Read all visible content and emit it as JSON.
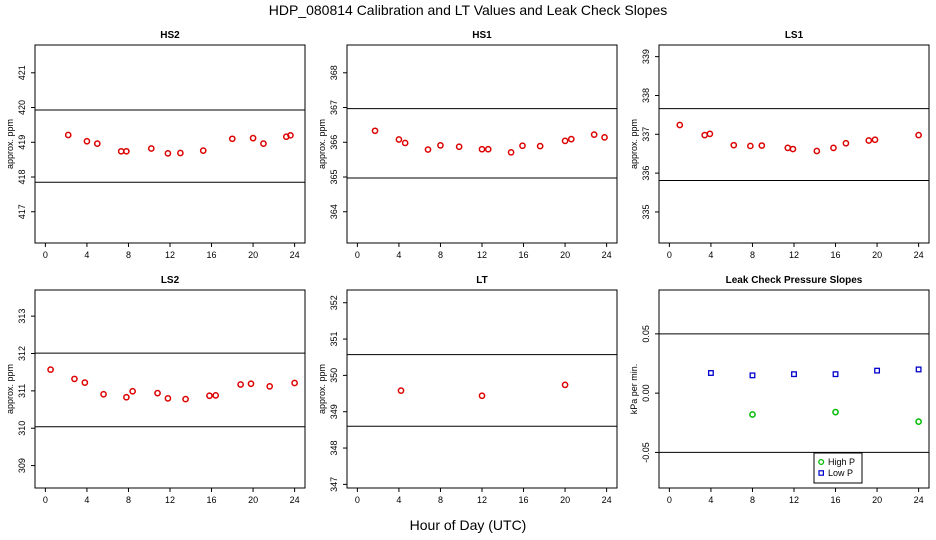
{
  "figure": {
    "title": "HDP_080814  Calibration and LT Values and Leak Check Slopes",
    "xlabel": "Hour of Day (UTC)"
  },
  "chart_data": [
    {
      "id": "hs2",
      "type": "scatter",
      "title": "HS2",
      "ylabel": "approx. ppm",
      "xlim": [
        -1,
        25
      ],
      "ylim": [
        416.1,
        421.8
      ],
      "xticks": [
        0,
        4,
        8,
        12,
        16,
        20,
        24
      ],
      "yticks": [
        417,
        418,
        419,
        420,
        421
      ],
      "hlines": [
        419.93,
        417.85
      ],
      "series": [
        {
          "name": "HS2",
          "color": "#dd0000",
          "x": [
            2.2,
            4.0,
            5.0,
            7.3,
            7.8,
            10.2,
            11.8,
            13.0,
            15.2,
            18.0,
            20.0,
            21.0,
            23.2,
            23.6
          ],
          "y": [
            419.21,
            419.03,
            418.96,
            418.74,
            418.74,
            418.82,
            418.68,
            418.69,
            418.76,
            419.1,
            419.12,
            418.96,
            419.16,
            419.2
          ]
        }
      ]
    },
    {
      "id": "hs1",
      "type": "scatter",
      "title": "HS1",
      "ylabel": "approx. ppm",
      "xlim": [
        -1,
        25
      ],
      "ylim": [
        363.1,
        368.8
      ],
      "xticks": [
        0,
        4,
        8,
        12,
        16,
        20,
        24
      ],
      "yticks": [
        364,
        365,
        366,
        367,
        368
      ],
      "hlines": [
        366.97,
        364.97
      ],
      "series": [
        {
          "name": "HS1",
          "color": "#dd0000",
          "x": [
            1.7,
            4.0,
            4.6,
            6.8,
            8.0,
            9.8,
            12.0,
            12.6,
            14.8,
            15.9,
            17.6,
            20.0,
            20.6,
            22.8,
            23.8
          ],
          "y": [
            366.33,
            366.08,
            365.98,
            365.79,
            365.91,
            365.87,
            365.8,
            365.8,
            365.71,
            365.9,
            365.89,
            366.04,
            366.09,
            366.22,
            366.14
          ]
        }
      ]
    },
    {
      "id": "ls1",
      "type": "scatter",
      "title": "LS1",
      "ylabel": "approx. ppm",
      "xlim": [
        -1,
        25
      ],
      "ylim": [
        334.2,
        339.3
      ],
      "xticks": [
        0,
        4,
        8,
        12,
        16,
        20,
        24
      ],
      "yticks": [
        335,
        336,
        337,
        338,
        339
      ],
      "hlines": [
        337.66,
        335.81
      ],
      "series": [
        {
          "name": "LS1",
          "color": "#dd0000",
          "x": [
            1.0,
            3.4,
            3.9,
            6.2,
            7.8,
            8.9,
            11.4,
            11.9,
            14.2,
            15.8,
            17.0,
            19.2,
            19.8,
            24.0
          ],
          "y": [
            337.24,
            336.98,
            337.01,
            336.72,
            336.7,
            336.71,
            336.65,
            336.62,
            336.57,
            336.65,
            336.77,
            336.84,
            336.86,
            336.98
          ]
        }
      ]
    },
    {
      "id": "ls2",
      "type": "scatter",
      "title": "LS2",
      "ylabel": "approx. ppm",
      "xlim": [
        -1,
        25
      ],
      "ylim": [
        308.4,
        313.7
      ],
      "xticks": [
        0,
        4,
        8,
        12,
        16,
        20,
        24
      ],
      "yticks": [
        309,
        310,
        311,
        312,
        313
      ],
      "hlines": [
        312.01,
        310.04
      ],
      "series": [
        {
          "name": "LS2",
          "color": "#dd0000",
          "x": [
            0.5,
            2.8,
            3.8,
            5.6,
            7.8,
            8.4,
            10.8,
            11.8,
            13.5,
            15.8,
            16.4,
            18.8,
            19.8,
            21.6,
            24.0
          ],
          "y": [
            311.57,
            311.32,
            311.22,
            310.91,
            310.83,
            310.99,
            310.94,
            310.8,
            310.78,
            310.87,
            310.88,
            311.17,
            311.19,
            311.12,
            311.21
          ]
        }
      ]
    },
    {
      "id": "lt",
      "type": "scatter",
      "title": "LT",
      "ylabel": "approx. ppm",
      "xlim": [
        -1,
        25
      ],
      "ylim": [
        346.9,
        352.35
      ],
      "xticks": [
        0,
        4,
        8,
        12,
        16,
        20,
        24
      ],
      "yticks": [
        347,
        348,
        349,
        350,
        351,
        352
      ],
      "hlines": [
        350.57,
        348.6
      ],
      "series": [
        {
          "name": "LT",
          "color": "#dd0000",
          "x": [
            4.2,
            12.0,
            20.0
          ],
          "y": [
            349.58,
            349.44,
            349.74
          ]
        }
      ]
    },
    {
      "id": "leak",
      "type": "scatter",
      "title": "Leak Check Pressure Slopes",
      "ylabel": "kPa per min.",
      "xlim": [
        -1,
        25
      ],
      "ylim": [
        -0.08,
        0.087
      ],
      "xticks": [
        0,
        4,
        8,
        12,
        16,
        20,
        24
      ],
      "yticks": [
        -0.05,
        0.0,
        0.05
      ],
      "ytick_labels": [
        "-0.05",
        "0.00",
        "0.05"
      ],
      "hlines": [
        0.05,
        -0.05
      ],
      "legend": {
        "position": "bottom-right",
        "entries": [
          "High P",
          "Low P"
        ]
      },
      "series": [
        {
          "name": "High P",
          "color": "#00bb00",
          "x": [
            8.0,
            16.0,
            24.0
          ],
          "y": [
            -0.018,
            -0.016,
            -0.024
          ]
        },
        {
          "name": "Low P",
          "color": "#0000cc",
          "x": [
            4.0,
            8.0,
            12.0,
            16.0,
            20.0,
            24.0
          ],
          "y": [
            0.017,
            0.015,
            0.016,
            0.016,
            0.019,
            0.02
          ]
        }
      ]
    }
  ]
}
